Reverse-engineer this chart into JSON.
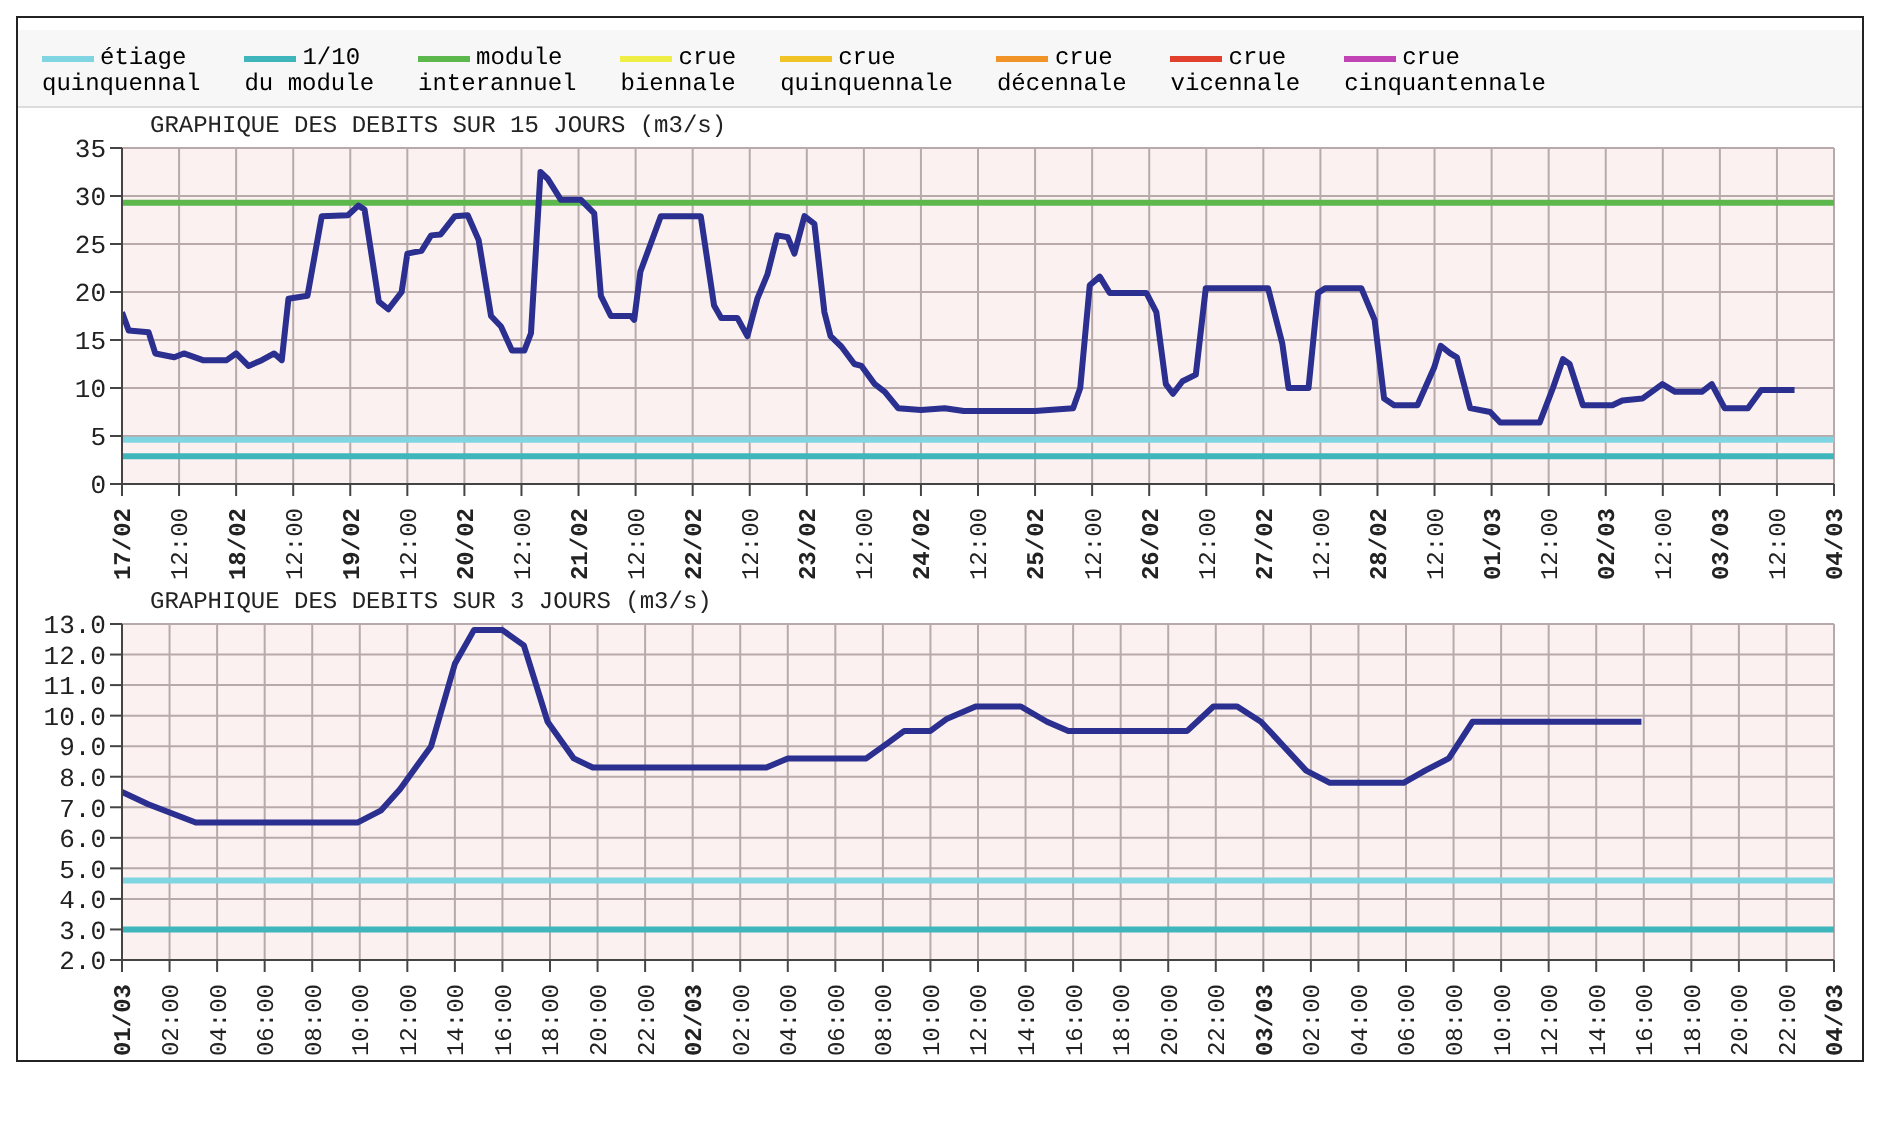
{
  "chart_data": [
    {
      "type": "line",
      "title": "GRAPHIQUE DES DEBITS SUR 15 JOURS (m3/s)",
      "legend": "top",
      "grid": true,
      "xlim": [
        "--02-17",
        "--03-04"
      ],
      "ylim": [
        0,
        35
      ],
      "yticks": [
        0,
        5,
        10,
        15,
        20,
        25,
        30,
        35
      ],
      "xticks": [
        {
          "value": "--02-17",
          "label": "17/02"
        },
        {
          "value": "--02-17T12:00",
          "label": "12:00"
        },
        {
          "value": "--02-18",
          "label": "18/02"
        },
        {
          "value": "--02-18T12:00",
          "label": "12:00"
        },
        {
          "value": "--02-19",
          "label": "19/02"
        },
        {
          "value": "--02-19T12:00",
          "label": "12:00"
        },
        {
          "value": "--02-20",
          "label": "20/02"
        },
        {
          "value": "--02-20T12:00",
          "label": "12:00"
        },
        {
          "value": "--02-21",
          "label": "21/02"
        },
        {
          "value": "--02-21T12:00",
          "label": "12:00"
        },
        {
          "value": "--02-22",
          "label": "22/02"
        },
        {
          "value": "--02-22T12:00",
          "label": "12:00"
        },
        {
          "value": "--02-23",
          "label": "23/02"
        },
        {
          "value": "--02-23T12:00",
          "label": "12:00"
        },
        {
          "value": "--02-24",
          "label": "24/02"
        },
        {
          "value": "--02-24T12:00",
          "label": "12:00"
        },
        {
          "value": "--02-25",
          "label": "25/02"
        },
        {
          "value": "--02-25T12:00",
          "label": "12:00"
        },
        {
          "value": "--02-26",
          "label": "26/02"
        },
        {
          "value": "--02-26T12:00",
          "label": "12:00"
        },
        {
          "value": "--02-27",
          "label": "27/02"
        },
        {
          "value": "--02-27T12:00",
          "label": "12:00"
        },
        {
          "value": "--02-28",
          "label": "28/02"
        },
        {
          "value": "--02-28T12:00",
          "label": "12:00"
        },
        {
          "value": "--03-01",
          "label": "01/03"
        },
        {
          "value": "--03-01T12:00",
          "label": "12:00"
        },
        {
          "value": "--03-02",
          "label": "02/03"
        },
        {
          "value": "--03-02T12:00",
          "label": "12:00"
        },
        {
          "value": "--03-03",
          "label": "03/03"
        },
        {
          "value": "--03-03T12:00",
          "label": "12:00"
        },
        {
          "value": "--03-04",
          "label": "04/03"
        }
      ],
      "ref_lines": [
        {
          "axis": "y",
          "value": 4.6,
          "label": "étiage\nquinquennal",
          "color": "#7fd6e2"
        },
        {
          "axis": "y",
          "value": 2.9,
          "label": "1/10\ndu module",
          "color": "#3fb6bc"
        },
        {
          "axis": "y",
          "value": 29.3,
          "label": "module\ninterannuel",
          "color": "#5cb84c"
        }
      ],
      "series": [
        {
          "color": "#2b2f8f",
          "x": [
            "--02-17T00:00",
            "--02-17T01:24",
            "--02-17T05:36",
            "--02-17T07:00",
            "--02-17T11:00",
            "--02-17T13:00",
            "--02-17T17:00",
            "--02-17T22:00",
            "--02-18T00:00",
            "--02-18T02:36",
            "--02-18T05:24",
            "--02-18T08:00",
            "--02-18T09:36",
            "--02-18T11:00",
            "--02-18T15:00",
            "--02-18T18:00",
            "--02-18T23:30",
            "--02-19T01:42",
            "--02-19T03:00",
            "--02-19T06:00",
            "--02-19T08:00",
            "--02-19T10:48",
            "--02-19T12:00",
            "--02-19T15:00",
            "--02-19T17:00",
            "--02-19T19:00",
            "--02-19T22:00",
            "--02-20T00:42",
            "--02-20T03:00",
            "--02-20T05:36",
            "--02-20T07:42",
            "--02-20T10:00",
            "--02-20T12:36",
            "--02-20T14:00",
            "--02-20T16:00",
            "--02-20T17:30",
            "--02-20T20:18",
            "--02-21T00:30",
            "--02-21T03:18",
            "--02-21T04:42",
            "--02-21T06:48",
            "--02-21T11:00",
            "--02-21T11:42",
            "--02-21T13:00",
            "--02-21T17:18",
            "--02-22T01:42",
            "--02-22T04:30",
            "--02-22T06:00",
            "--02-22T09:24",
            "--02-22T11:30",
            "--02-22T13:36",
            "--02-22T15:42",
            "--02-22T17:48",
            "--02-22T20:00",
            "--02-22T21:24",
            "--02-22T23:30",
            "--02-23T01:36",
            "--02-23T03:42",
            "--02-23T05:00",
            "--02-23T07:18",
            "--02-23T10:00",
            "--02-23T11:30",
            "--02-23T14:18",
            "--02-23T16:24",
            "--02-23T19:12",
            "--02-24T00:00",
            "--02-24T05:00",
            "--02-24T09:00",
            "--02-25T00:00",
            "--02-25T08:00",
            "--02-25T09:30",
            "--02-25T11:30",
            "--02-25T13:36",
            "--02-25T15:42",
            "--02-25T23:24",
            "--02-26T01:30",
            "--02-26T03:30",
            "--02-26T05:00",
            "--02-26T07:00",
            "--02-26T09:48",
            "--02-26T11:54",
            "--02-27T01:00",
            "--02-27T04:00",
            "--02-27T05:18",
            "--02-27T09:30",
            "--02-27T11:30",
            "--02-27T13:00",
            "--02-27T20:36",
            "--02-27T23:24",
            "--02-28T01:24",
            "--02-28T03:30",
            "--02-28T08:24",
            "--02-28T11:54",
            "--02-28T13:18",
            "--02-28T15:18",
            "--02-28T16:42",
            "--02-28T19:30",
            "--02-28T23:42",
            "--03-01T01:48",
            "--03-01T10:06",
            "--03-01T12:54",
            "--03-01T15:00",
            "--03-01T16:24",
            "--03-01T19:12",
            "--03-02T01:24",
            "--03-02T03:30",
            "--03-02T07:42",
            "--03-02T11:54",
            "--03-02T14:36",
            "--03-02T20:12",
            "--03-02T22:18",
            "--03-03T01:00",
            "--03-03T05:54",
            "--03-03T08:42",
            "--03-03T15:42"
          ],
          "values": [
            17.9,
            16,
            15.8,
            13.6,
            13.2,
            13.6,
            12.9,
            12.9,
            13.6,
            12.3,
            12.9,
            13.6,
            12.9,
            19.3,
            19.6,
            27.9,
            28,
            29,
            28.6,
            19,
            18.2,
            20,
            24,
            24.3,
            25.9,
            26,
            27.9,
            28,
            25.4,
            17.5,
            16.4,
            13.9,
            13.9,
            15.7,
            32.5,
            31.8,
            29.6,
            29.6,
            28.2,
            19.6,
            17.5,
            17.5,
            17.1,
            22.1,
            27.9,
            27.9,
            18.6,
            17.3,
            17.3,
            15.4,
            19.3,
            21.8,
            25.9,
            25.7,
            24,
            27.9,
            27.1,
            17.9,
            15.4,
            14.3,
            12.5,
            12.3,
            10.4,
            9.6,
            7.9,
            7.7,
            7.9,
            7.6,
            7.6,
            7.9,
            10,
            20.7,
            21.6,
            19.9,
            19.9,
            17.9,
            10.4,
            9.4,
            10.7,
            11.4,
            20.4,
            20.4,
            14.6,
            10,
            10,
            19.9,
            20.4,
            20.4,
            17.1,
            8.9,
            8.2,
            8.2,
            12.1,
            14.4,
            13.6,
            13.2,
            7.9,
            7.5,
            6.4,
            6.4,
            10,
            13,
            12.5,
            8.2,
            8.2,
            8.7,
            8.9,
            10.4,
            9.6,
            9.6,
            10.4,
            7.9,
            7.9,
            9.8,
            9.8
          ]
        },
        {
          "name": "crue\nbiennale",
          "color": "#eeee44"
        },
        {
          "name": "crue\nquinquennale",
          "color": "#f0c424"
        },
        {
          "name": "crue\ndécennale",
          "color": "#f09428"
        },
        {
          "name": "crue\nvicennale",
          "color": "#e0402c"
        },
        {
          "name": "crue\ncinquantennale",
          "color": "#c044b4"
        }
      ]
    },
    {
      "type": "line",
      "title": "GRAPHIQUE DES DEBITS SUR 3 JOURS (m3/s)",
      "grid": true,
      "xlim": [
        "--03-01",
        "--03-04"
      ],
      "ylim": [
        2,
        13
      ],
      "yticks": [
        {
          "value": 2,
          "label": "2.0"
        },
        {
          "value": 3,
          "label": "3.0"
        },
        {
          "value": 4,
          "label": "4.0"
        },
        {
          "value": 5,
          "label": "5.0"
        },
        {
          "value": 6,
          "label": "6.0"
        },
        {
          "value": 7,
          "label": "7.0"
        },
        {
          "value": 8,
          "label": "8.0"
        },
        {
          "value": 9,
          "label": "9.0"
        },
        {
          "value": 10,
          "label": "10.0"
        },
        {
          "value": 11,
          "label": "11.0"
        },
        {
          "value": 12,
          "label": "12.0"
        },
        {
          "value": 13,
          "label": "13.0"
        }
      ],
      "xticks": [
        {
          "value": "--03-01",
          "label": "01/03"
        },
        {
          "value": "--03-01T02:00",
          "label": "02:00"
        },
        {
          "value": "--03-01T04:00",
          "label": "04:00"
        },
        {
          "value": "--03-01T06:00",
          "label": "06:00"
        },
        {
          "value": "--03-01T08:00",
          "label": "08:00"
        },
        {
          "value": "--03-01T10:00",
          "label": "10:00"
        },
        {
          "value": "--03-01T12:00",
          "label": "12:00"
        },
        {
          "value": "--03-01T14:00",
          "label": "14:00"
        },
        {
          "value": "--03-01T16:00",
          "label": "16:00"
        },
        {
          "value": "--03-01T18:00",
          "label": "18:00"
        },
        {
          "value": "--03-01T20:00",
          "label": "20:00"
        },
        {
          "value": "--03-01T22:00",
          "label": "22:00"
        },
        {
          "value": "--03-02",
          "label": "02/03"
        },
        {
          "value": "--03-02T02:00",
          "label": "02:00"
        },
        {
          "value": "--03-02T04:00",
          "label": "04:00"
        },
        {
          "value": "--03-02T06:00",
          "label": "06:00"
        },
        {
          "value": "--03-02T08:00",
          "label": "08:00"
        },
        {
          "value": "--03-02T10:00",
          "label": "10:00"
        },
        {
          "value": "--03-02T12:00",
          "label": "12:00"
        },
        {
          "value": "--03-02T14:00",
          "label": "14:00"
        },
        {
          "value": "--03-02T16:00",
          "label": "16:00"
        },
        {
          "value": "--03-02T18:00",
          "label": "18:00"
        },
        {
          "value": "--03-02T20:00",
          "label": "20:00"
        },
        {
          "value": "--03-02T22:00",
          "label": "22:00"
        },
        {
          "value": "--03-03",
          "label": "03/03"
        },
        {
          "value": "--03-03T02:00",
          "label": "02:00"
        },
        {
          "value": "--03-03T04:00",
          "label": "04:00"
        },
        {
          "value": "--03-03T06:00",
          "label": "06:00"
        },
        {
          "value": "--03-03T08:00",
          "label": "08:00"
        },
        {
          "value": "--03-03T10:00",
          "label": "10:00"
        },
        {
          "value": "--03-03T12:00",
          "label": "12:00"
        },
        {
          "value": "--03-03T14:00",
          "label": "14:00"
        },
        {
          "value": "--03-03T16:00",
          "label": "16:00"
        },
        {
          "value": "--03-03T18:00",
          "label": "18:00"
        },
        {
          "value": "--03-03T20:00",
          "label": "20:00"
        },
        {
          "value": "--03-03T22:00",
          "label": "22:00"
        },
        {
          "value": "--03-04",
          "label": "04/03"
        }
      ],
      "ref_lines": [
        {
          "axis": "y",
          "value": 4.6,
          "color": "#7fd6e2"
        },
        {
          "axis": "y",
          "value": 3.0,
          "color": "#3fb6bc"
        }
      ],
      "series": [
        {
          "color": "#2b2f8f",
          "x": [
            "--03-01T00:00",
            "--03-01T01:06",
            "--03-01T03:06",
            "--03-01T09:54",
            "--03-01T10:54",
            "--03-01T11:42",
            "--03-01T13:00",
            "--03-01T14:00",
            "--03-01T14:48",
            "--03-01T16:00",
            "--03-01T16:54",
            "--03-01T17:54",
            "--03-01T19:00",
            "--03-01T19:48",
            "--03-02T03:06",
            "--03-02T04:00",
            "--03-02T07:18",
            "--03-02T08:12",
            "--03-02T08:54",
            "--03-02T10:00",
            "--03-02T10:42",
            "--03-02T11:54",
            "--03-02T13:48",
            "--03-02T14:54",
            "--03-02T15:48",
            "--03-02T20:48",
            "--03-02T21:54",
            "--03-02T22:54",
            "--03-02T23:54",
            "--03-03T01:48",
            "--03-03T02:48",
            "--03-03T05:54",
            "--03-03T06:48",
            "--03-03T07:48",
            "--03-03T08:48",
            "--03-03T15:54"
          ],
          "values": [
            7.5,
            7.1,
            6.5,
            6.5,
            6.9,
            7.6,
            9,
            11.7,
            12.8,
            12.8,
            12.3,
            9.8,
            8.6,
            8.3,
            8.3,
            8.6,
            8.6,
            9.1,
            9.5,
            9.5,
            9.9,
            10.3,
            10.3,
            9.8,
            9.5,
            9.5,
            10.3,
            10.3,
            9.8,
            8.2,
            7.8,
            7.8,
            8.2,
            8.6,
            9.8,
            9.8
          ]
        }
      ]
    }
  ]
}
